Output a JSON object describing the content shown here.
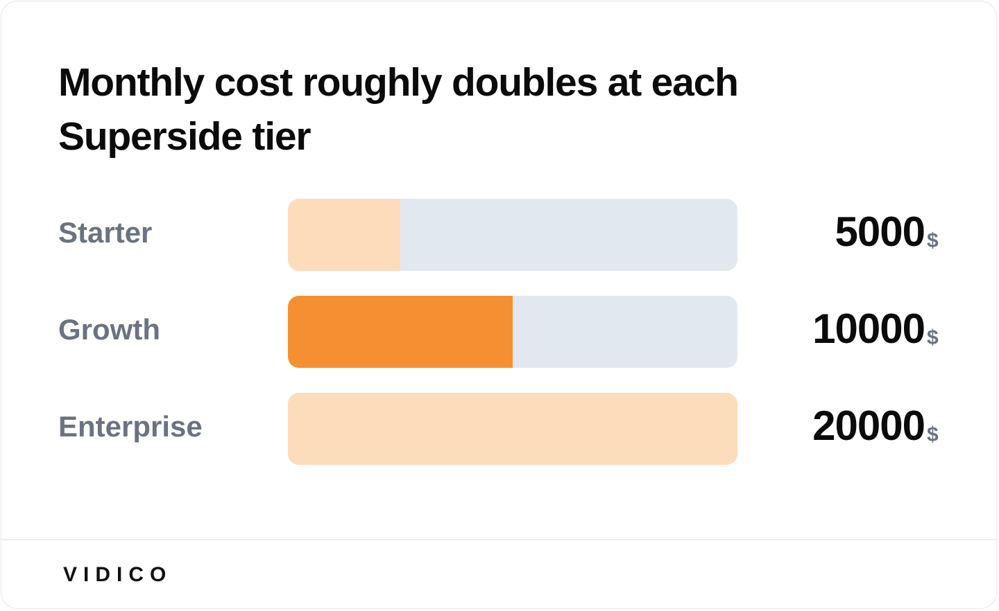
{
  "chart_data": {
    "type": "bar",
    "orientation": "horizontal",
    "title": "Monthly cost roughly doubles at each Superside tier",
    "categories": [
      "Starter",
      "Growth",
      "Enterprise"
    ],
    "values": [
      5000,
      10000,
      20000
    ],
    "unit": "$",
    "colors": [
      "#fcdcbb",
      "#f59032",
      "#fcdcbb"
    ],
    "track_color": "#e2e8f0",
    "xlim": [
      0,
      20000
    ]
  },
  "footer": {
    "brand": "VIDICO"
  }
}
